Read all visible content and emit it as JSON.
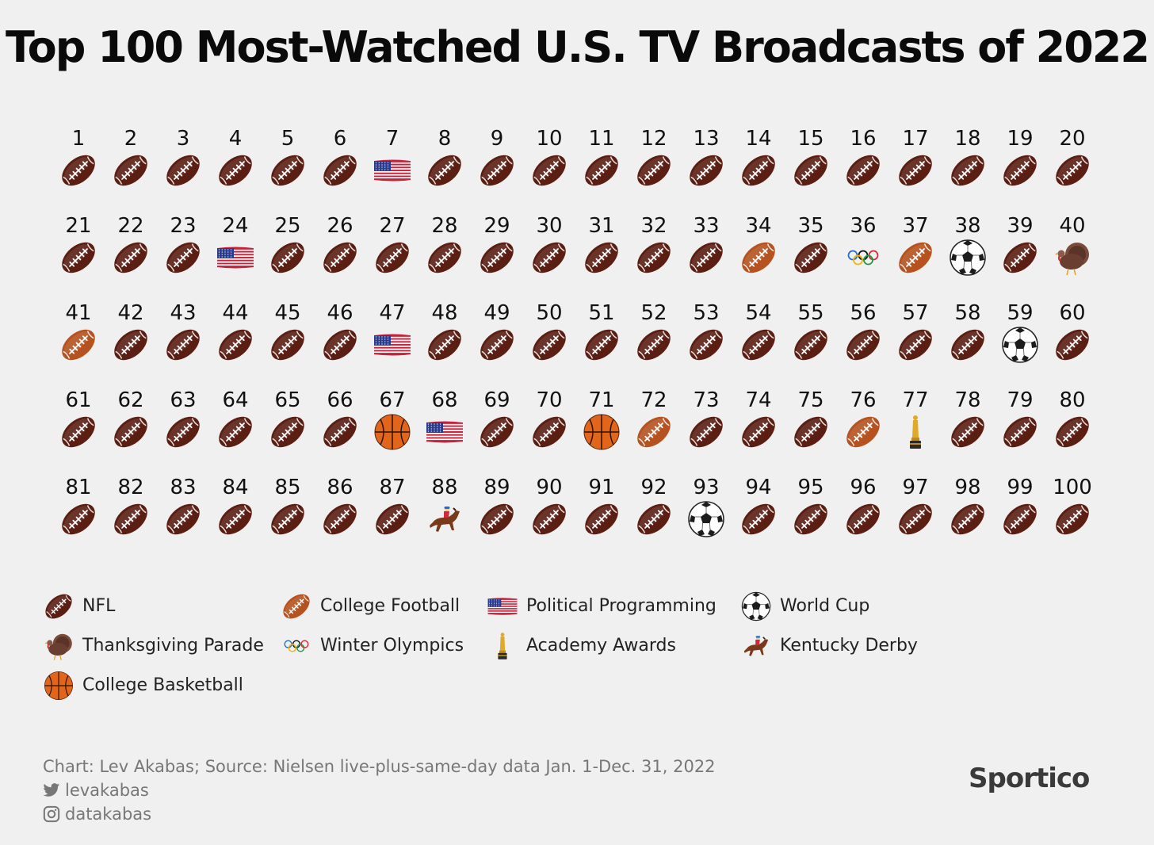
{
  "title": "Top 100 Most-Watched U.S. TV Broadcasts of 2022",
  "chart_data": {
    "type": "table",
    "ranks": [
      1,
      2,
      3,
      4,
      5,
      6,
      7,
      8,
      9,
      10,
      11,
      12,
      13,
      14,
      15,
      16,
      17,
      18,
      19,
      20,
      21,
      22,
      23,
      24,
      25,
      26,
      27,
      28,
      29,
      30,
      31,
      32,
      33,
      34,
      35,
      36,
      37,
      38,
      39,
      40,
      41,
      42,
      43,
      44,
      45,
      46,
      47,
      48,
      49,
      50,
      51,
      52,
      53,
      54,
      55,
      56,
      57,
      58,
      59,
      60,
      61,
      62,
      63,
      64,
      65,
      66,
      67,
      68,
      69,
      70,
      71,
      72,
      73,
      74,
      75,
      76,
      77,
      78,
      79,
      80,
      81,
      82,
      83,
      84,
      85,
      86,
      87,
      88,
      89,
      90,
      91,
      92,
      93,
      94,
      95,
      96,
      97,
      98,
      99,
      100
    ],
    "categories": [
      "NFL",
      "NFL",
      "NFL",
      "NFL",
      "NFL",
      "NFL",
      "Political Programming",
      "NFL",
      "NFL",
      "NFL",
      "NFL",
      "NFL",
      "NFL",
      "NFL",
      "NFL",
      "NFL",
      "NFL",
      "NFL",
      "NFL",
      "NFL",
      "NFL",
      "NFL",
      "NFL",
      "Political Programming",
      "NFL",
      "NFL",
      "NFL",
      "NFL",
      "NFL",
      "NFL",
      "NFL",
      "NFL",
      "NFL",
      "College Football",
      "NFL",
      "Winter Olympics",
      "College Football",
      "World Cup",
      "NFL",
      "Thanksgiving Parade",
      "College Football",
      "NFL",
      "NFL",
      "NFL",
      "NFL",
      "NFL",
      "Political Programming",
      "NFL",
      "NFL",
      "NFL",
      "NFL",
      "NFL",
      "NFL",
      "NFL",
      "NFL",
      "NFL",
      "NFL",
      "NFL",
      "World Cup",
      "NFL",
      "NFL",
      "NFL",
      "NFL",
      "NFL",
      "NFL",
      "NFL",
      "College Basketball",
      "Political Programming",
      "NFL",
      "NFL",
      "College Basketball",
      "College Football",
      "NFL",
      "NFL",
      "NFL",
      "College Football",
      "Academy Awards",
      "NFL",
      "NFL",
      "NFL",
      "NFL",
      "NFL",
      "NFL",
      "NFL",
      "NFL",
      "NFL",
      "NFL",
      "Kentucky Derby",
      "NFL",
      "NFL",
      "NFL",
      "NFL",
      "World Cup",
      "NFL",
      "NFL",
      "NFL",
      "NFL",
      "NFL",
      "NFL",
      "NFL"
    ],
    "legend": [
      {
        "label": "NFL",
        "icon": "nfl-football-icon"
      },
      {
        "label": "College Football",
        "icon": "college-football-icon"
      },
      {
        "label": "Political Programming",
        "icon": "us-flag-icon"
      },
      {
        "label": "World Cup",
        "icon": "soccer-ball-icon"
      },
      {
        "label": "Thanksgiving Parade",
        "icon": "turkey-icon"
      },
      {
        "label": "Winter Olympics",
        "icon": "olympic-rings-icon"
      },
      {
        "label": "Academy Awards",
        "icon": "oscar-statue-icon"
      },
      {
        "label": "Kentucky Derby",
        "icon": "horse-racing-icon"
      },
      {
        "label": "College Basketball",
        "icon": "basketball-icon"
      }
    ]
  },
  "footer": {
    "credit": "Chart: Lev Akabas; Source: Nielsen live-plus-same-day data Jan. 1-Dec. 31, 2022",
    "twitter": "levakabas",
    "instagram": "datakabas"
  },
  "brand": "Sportico",
  "colors": {
    "background": "#f0f0f0",
    "nfl_ball": "#5b1e12",
    "college_ball": "#b5521f",
    "basketball": "#e1661c",
    "oscar_gold": "#e0a92a"
  }
}
